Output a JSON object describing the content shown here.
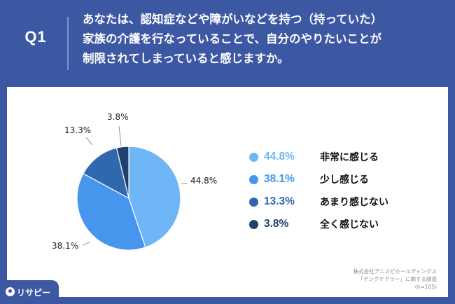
{
  "header": {
    "q_label": "Q1",
    "question_lines": [
      "あなたは、認知症などや障がいなどを持つ（持っていた）",
      "家族の介護を行なっていることで、自分のやりたいことが",
      "制限されてしまっていると感じますか。"
    ]
  },
  "chart_data": {
    "type": "pie",
    "slices": [
      {
        "label": "非常に感じる",
        "value": 44.8,
        "value_label": "44.8%",
        "color": "#6fb6f7"
      },
      {
        "label": "少し感じる",
        "value": 38.1,
        "value_label": "38.1%",
        "color": "#4596ec"
      },
      {
        "label": "あまり感じない",
        "value": 13.3,
        "value_label": "13.3%",
        "color": "#2f68ae"
      },
      {
        "label": "全く感じない",
        "value": 3.8,
        "value_label": "3.8%",
        "color": "#213f6c"
      }
    ],
    "start": "12 o'clock",
    "direction": "clockwise",
    "legend_position": "right"
  },
  "source": {
    "lines": [
      "株式会社アニスピホールディングス",
      "「ヤングケアラー」に関する調査",
      "(n=105)"
    ]
  },
  "brand": {
    "text": "リサピー"
  },
  "colors": {
    "background": "#3d58a3",
    "panel": "#ffffff"
  }
}
